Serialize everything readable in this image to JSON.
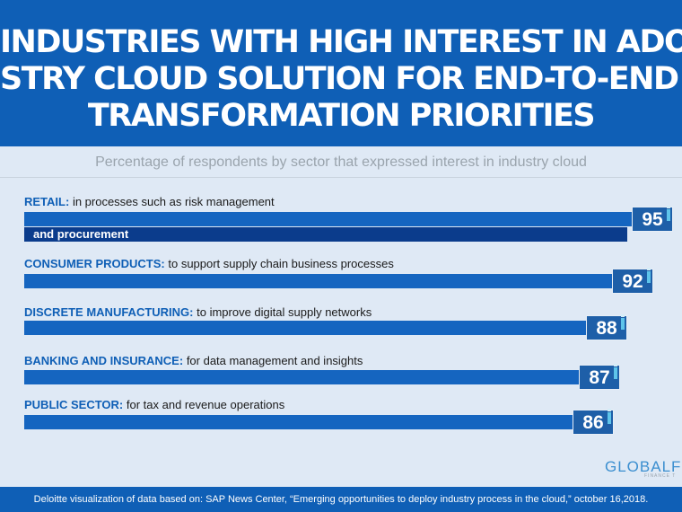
{
  "chart_data": {
    "type": "bar",
    "orientation": "horizontal",
    "title_lines": [
      "INDUSTRIES WITH HIGH INTEREST IN ADO",
      "STRY CLOUD SOLUTION FOR END-TO-END DI",
      "TRANSFORMATION PRIORITIES"
    ],
    "subtitle": "Percentage of respondents by sector that expressed interest in industry cloud",
    "categories": [
      {
        "name": "RETAIL:",
        "detail": "in processes such as risk management",
        "detail_cont": "and procurement",
        "value": 95
      },
      {
        "name": "CONSUMER PRODUCTS:",
        "detail": "to support supply chain business processes",
        "value": 92
      },
      {
        "name": "DISCRETE MANUFACTURING:",
        "detail": "to improve digital supply networks",
        "value": 88
      },
      {
        "name": "BANKING AND INSURANCE:",
        "detail": "for data management and insights",
        "value": 87
      },
      {
        "name": "PUBLIC SECTOR:",
        "detail": "for tax and revenue operations",
        "value": 86
      }
    ],
    "colors": {
      "banner": "#0f5fb6",
      "bar": "#1565c0",
      "value_box": "#1e5fa8",
      "accent": "#5ec4ea"
    }
  },
  "logo": {
    "main": "GLOBALF",
    "sub": "FINANCE T"
  },
  "footer": {
    "source": "Deloitte visualization of data based on: SAP News Center, “Emerging opportunities to deploy industry process in the cloud,” october 16,2018."
  }
}
